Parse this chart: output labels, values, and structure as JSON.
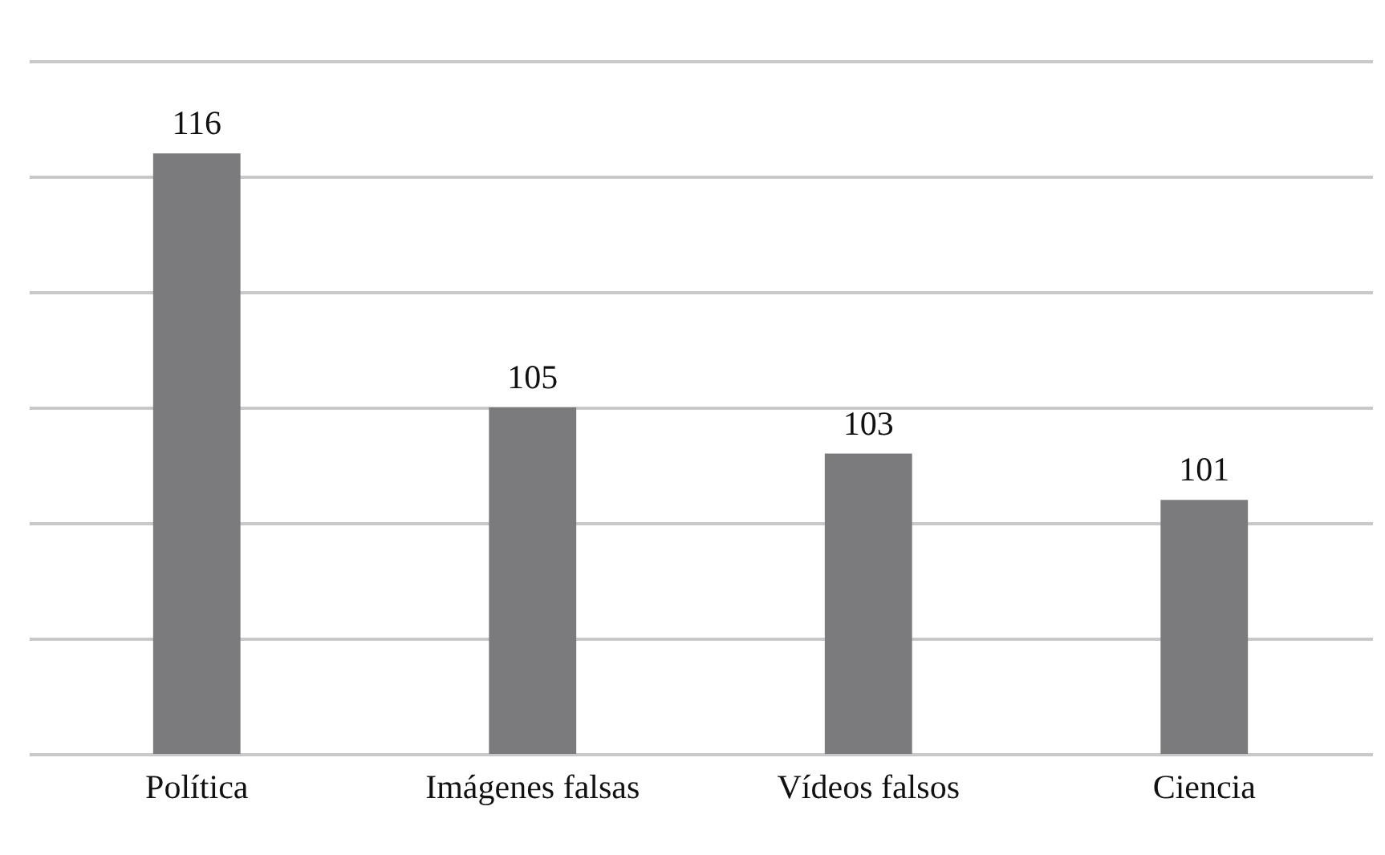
{
  "chart_data": {
    "type": "bar",
    "categories": [
      "Política",
      "Imágenes falsas",
      "Vídeos falsos",
      "Ciencia"
    ],
    "values": [
      116,
      105,
      103,
      101
    ],
    "color": "#7b7b7d",
    "ylim": [
      90,
      120
    ],
    "yticks": [
      {
        "value": 90,
        "label": null
      },
      {
        "value": 95,
        "label": null
      },
      {
        "value": 100,
        "label": null
      },
      {
        "value": 105,
        "label": null
      },
      {
        "value": 110,
        "label": null
      },
      {
        "value": 115,
        "label": null
      },
      {
        "value": 120,
        "label": null
      }
    ],
    "tick_labels": "x",
    "grid": "y",
    "data_labels": true
  }
}
